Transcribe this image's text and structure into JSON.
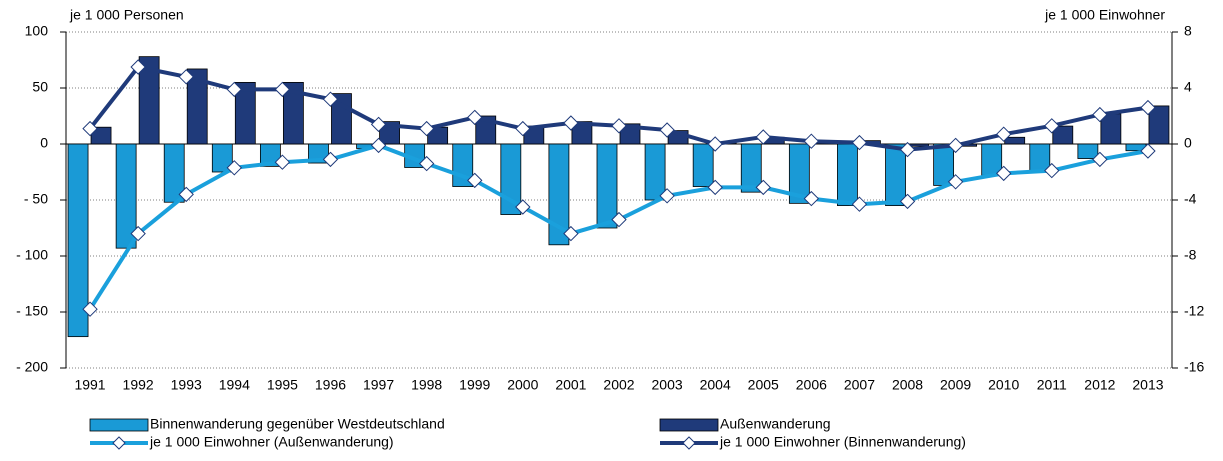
{
  "chart_data": {
    "type": "bar",
    "y_label": "je 1 000 Personen",
    "y2_label": "je 1 000 Einwohner",
    "categories": [
      "1991",
      "1992",
      "1993",
      "1994",
      "1995",
      "1996",
      "1997",
      "1998",
      "1999",
      "2000",
      "2001",
      "2002",
      "2003",
      "2004",
      "2005",
      "2006",
      "2007",
      "2008",
      "2009",
      "2010",
      "2011",
      "2012",
      "2013"
    ],
    "series": [
      {
        "name": "Binnenwanderung gegenüber Westdeutschland",
        "type": "bar",
        "color": "#1a9ad6",
        "values": [
          -172,
          -93,
          -52,
          -25,
          -20,
          -17,
          -4,
          -21,
          -38,
          -63,
          -90,
          -75,
          -50,
          -38,
          -43,
          -53,
          -55,
          -55,
          -37,
          -28,
          -25,
          -13,
          -6
        ]
      },
      {
        "name": "Außenwanderung",
        "type": "bar",
        "color": "#1f3a7a",
        "values": [
          15,
          78,
          67,
          55,
          55,
          45,
          20,
          15,
          25,
          16,
          20,
          18,
          12,
          1,
          6,
          3,
          3,
          -2,
          -2,
          6,
          16,
          27,
          34
        ]
      },
      {
        "name": "je 1 000 Einwohner (Außenwanderung)",
        "type": "line",
        "axis": "y2",
        "color": "#1aa0dc",
        "values": [
          -11.8,
          -6.4,
          -3.6,
          -1.7,
          -1.3,
          -1.1,
          -0.1,
          -1.4,
          -2.6,
          -4.5,
          -6.4,
          -5.4,
          -3.7,
          -3.1,
          -3.1,
          -3.9,
          -4.3,
          -4.1,
          -2.7,
          -2.1,
          -1.9,
          -1.1,
          -0.5
        ]
      },
      {
        "name": "je 1 000 Einwohner (Binnenwanderung)",
        "type": "line",
        "axis": "y2",
        "color": "#1f3a7a",
        "values": [
          1.1,
          5.5,
          4.8,
          3.9,
          3.9,
          3.2,
          1.4,
          1.1,
          1.9,
          1.1,
          1.5,
          1.3,
          1.0,
          0.0,
          0.5,
          0.2,
          0.1,
          -0.4,
          -0.1,
          0.7,
          1.3,
          2.1,
          2.6
        ]
      }
    ],
    "ylim": [
      -200,
      100
    ],
    "yticks": [
      {
        "value": -200,
        "label": "- 200"
      },
      {
        "value": -150,
        "label": "- 150"
      },
      {
        "value": -100,
        "label": "- 100"
      },
      {
        "value": -50,
        "label": "- 50"
      },
      0,
      50,
      100
    ],
    "y2lim": [
      -16,
      8
    ],
    "y2ticks": [
      -16,
      -12,
      -8,
      -4,
      0,
      4,
      8
    ],
    "grid": true
  }
}
